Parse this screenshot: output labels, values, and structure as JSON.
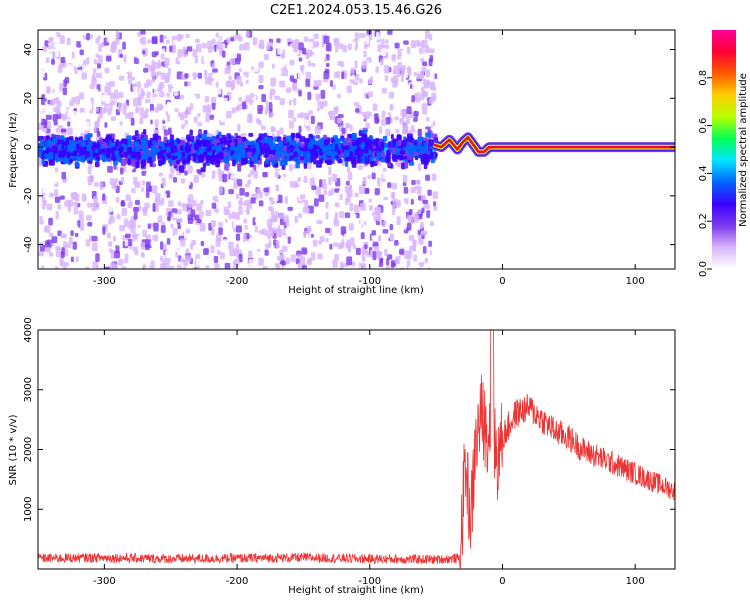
{
  "title": "C2E1.2024.053.15.46.G26",
  "chart_data": [
    {
      "type": "heatmap",
      "xlabel": "Height of straight line (km)",
      "ylabel": "Frequency (Hz)",
      "xlim": [
        -350,
        130
      ],
      "ylim": [
        -50,
        48
      ],
      "xticks": [
        -300,
        -200,
        -100,
        0,
        100
      ],
      "yticks": [
        -40,
        -20,
        0,
        20,
        40
      ],
      "noise_region_x": [
        -350,
        -52
      ],
      "coherent_region_x": [
        -52,
        130
      ],
      "signal_trace": {
        "x": [
          -52,
          -46,
          -40,
          -34,
          -30,
          -26,
          -22,
          -18,
          -14,
          -10,
          -6,
          0,
          20,
          60,
          100,
          130
        ],
        "y": [
          1,
          0,
          3,
          -1,
          2,
          4,
          1,
          -2,
          -2,
          0,
          0,
          0,
          0,
          0,
          0,
          0
        ]
      },
      "colorbar": {
        "label": "Normalized spectral amplitude",
        "range": [
          0.0,
          1.0
        ],
        "ticks": [
          "0.0",
          "0.2",
          "0.4",
          "0.6",
          "0.8"
        ],
        "colors": [
          "#ffffff",
          "#d8b4fe",
          "#7c3aed",
          "#3b00ff",
          "#0066ff",
          "#00e5ff",
          "#00ff55",
          "#b6ff00",
          "#ffd000",
          "#ff5a00",
          "#ff0033",
          "#ff0099"
        ]
      },
      "grid": false
    },
    {
      "type": "line",
      "xlabel": "Height of straight line (km)",
      "ylabel": "SNR (10 * v/v)",
      "xlim": [
        -350,
        130
      ],
      "ylim": [
        0,
        4000
      ],
      "xticks": [
        -300,
        -200,
        -100,
        0,
        100
      ],
      "yticks": [
        1000,
        2000,
        3000,
        4000
      ],
      "series": [
        {
          "color": "#ee3333",
          "x": [
            -350,
            -300,
            -250,
            -200,
            -150,
            -100,
            -50,
            -32,
            -28,
            -24,
            -20,
            -16,
            -12,
            -8,
            -4,
            0,
            10,
            20,
            30,
            40,
            50,
            60,
            80,
            100,
            130
          ],
          "y": [
            180,
            190,
            170,
            180,
            190,
            170,
            160,
            180,
            1800,
            800,
            2100,
            2600,
            2300,
            2400,
            1800,
            2200,
            2600,
            2700,
            2500,
            2300,
            2200,
            2000,
            1800,
            1600,
            1300
          ]
        }
      ],
      "grid": false
    }
  ]
}
